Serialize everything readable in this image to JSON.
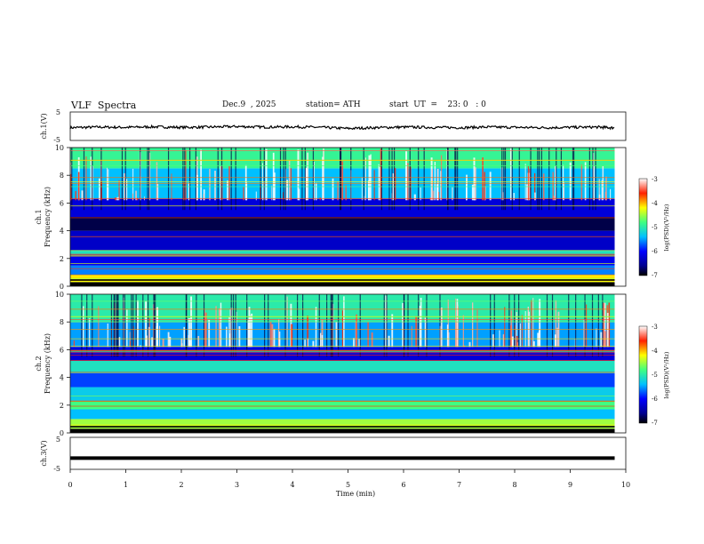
{
  "header": {
    "title": "VLF  Spectra",
    "date": "Dec.9  , 2025",
    "station": "station= ATH",
    "start": "start  UT  =    23: 0   : 0"
  },
  "colorbar_1": {
    "ticks": [
      "-3",
      "-4",
      "-5",
      "-6",
      "-7"
    ],
    "label": "log(PSD)(V²/Hz)"
  },
  "colorbar_2": {
    "ticks": [
      "-3",
      "-4",
      "-5",
      "-6",
      "-7"
    ],
    "label": "log(PSD)(V²/Hz)"
  },
  "colors": {
    "axis": "#111111",
    "trace": "#000000"
  },
  "chart_data": [
    {
      "type": "line",
      "title": "ch.1(V)",
      "ylabel": "ch.1(V)",
      "ylim": [
        -5,
        5
      ],
      "yticks": [
        "5",
        "-5"
      ],
      "xlim": [
        0,
        10
      ],
      "x": [
        0,
        0.5,
        1,
        1.5,
        2,
        2.5,
        3,
        3.5,
        4,
        4.5,
        5,
        5.5,
        6,
        6.5,
        7,
        7.5,
        8,
        8.5,
        9,
        9.5,
        9.8
      ],
      "values": [
        -0.5,
        -0.3,
        -0.4,
        -0.2,
        -0.4,
        -0.3,
        -0.1,
        -0.3,
        -0.2,
        -0.4,
        -0.8,
        -0.5,
        -0.3,
        -0.4,
        -0.5,
        -0.3,
        -0.4,
        -0.5,
        -0.4,
        -0.3,
        -0.6
      ]
    },
    {
      "type": "heatmap",
      "title": "ch.1 Frequency (kHz)",
      "ylabel": "ch.1\nFrequency  (kHz)",
      "xlim": [
        0,
        10
      ],
      "ylim": [
        0,
        10
      ],
      "yticks": [
        "0",
        "2",
        "4",
        "6",
        "8",
        "10"
      ],
      "zlim": [
        -7,
        -3
      ],
      "zlabel": "log(PSD)(V²/Hz)",
      "bands": [
        {
          "f0": 0.0,
          "f1": 0.3,
          "level": -7.2
        },
        {
          "f0": 0.3,
          "f1": 0.8,
          "level": -4.2
        },
        {
          "f0": 0.8,
          "f1": 1.5,
          "level": -5.6
        },
        {
          "f0": 1.5,
          "f1": 2.3,
          "level": -6.1
        },
        {
          "f0": 2.3,
          "f1": 2.6,
          "level": -5.1
        },
        {
          "f0": 2.6,
          "f1": 4.0,
          "level": -6.3
        },
        {
          "f0": 4.0,
          "f1": 5.0,
          "level": -6.8
        },
        {
          "f0": 5.0,
          "f1": 6.3,
          "level": -6.2
        },
        {
          "f0": 6.3,
          "f1": 8.5,
          "level": -5.4
        },
        {
          "f0": 8.5,
          "f1": 10.0,
          "level": -4.9
        }
      ]
    },
    {
      "type": "heatmap",
      "title": "ch.2 Frequency (kHz)",
      "ylabel": "ch.2\nFrequency  (kHz)",
      "xlim": [
        0,
        10
      ],
      "ylim": [
        0,
        10
      ],
      "yticks": [
        "0",
        "2",
        "4",
        "6",
        "8",
        "10"
      ],
      "zlim": [
        -7,
        -3
      ],
      "zlabel": "log(PSD)(V²/Hz)",
      "bands": [
        {
          "f0": 0.0,
          "f1": 0.3,
          "level": -7.2
        },
        {
          "f0": 0.3,
          "f1": 1.0,
          "level": -4.5
        },
        {
          "f0": 1.0,
          "f1": 1.7,
          "level": -5.4
        },
        {
          "f0": 1.7,
          "f1": 2.3,
          "level": -4.8
        },
        {
          "f0": 2.3,
          "f1": 3.3,
          "level": -5.3
        },
        {
          "f0": 3.3,
          "f1": 4.3,
          "level": -5.8
        },
        {
          "f0": 4.3,
          "f1": 5.2,
          "level": -5.1
        },
        {
          "f0": 5.2,
          "f1": 6.2,
          "level": -6.2
        },
        {
          "f0": 6.2,
          "f1": 8.0,
          "level": -5.5
        },
        {
          "f0": 8.0,
          "f1": 10.0,
          "level": -5.0
        }
      ]
    },
    {
      "type": "line",
      "title": "ch.3(V)",
      "ylabel": "ch.3(V)",
      "ylim": [
        -5,
        5
      ],
      "yticks": [
        "5",
        "-5"
      ],
      "xlim": [
        0,
        10
      ],
      "xlabel": "Time  (min)",
      "xticks": [
        "0",
        "1",
        "2",
        "3",
        "4",
        "5",
        "6",
        "7",
        "8",
        "9",
        "10"
      ],
      "x": [
        0,
        9.8
      ],
      "values": [
        -1.5,
        -1.5
      ]
    }
  ]
}
